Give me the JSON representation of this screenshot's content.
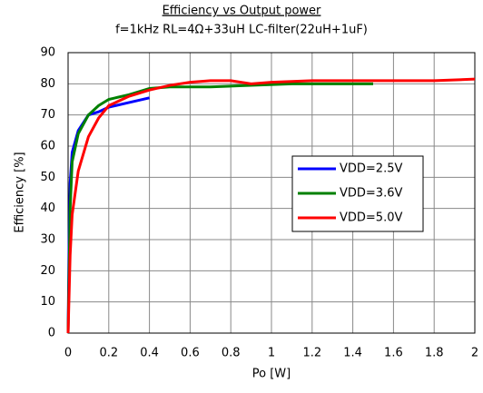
{
  "chart_data": {
    "type": "line",
    "title": "Efficiency vs Output power",
    "subtitle": "f=1kHz RL=4Ω+33uH  LC-filter(22uH+1uF)",
    "x_label": "Po [W]",
    "y_label": "Efficiency [%]",
    "xlim": [
      0,
      2
    ],
    "ylim": [
      0,
      90
    ],
    "xticks": [
      0,
      0.2,
      0.4,
      0.6,
      0.8,
      1,
      1.2,
      1.4,
      1.6,
      1.8,
      2
    ],
    "yticks": [
      0,
      10,
      20,
      30,
      40,
      50,
      60,
      70,
      80,
      90
    ],
    "grid": true,
    "legend": "right",
    "series": [
      {
        "name": "VDD=2.5V",
        "color": "#0000ff",
        "x": [
          0,
          0.005,
          0.01,
          0.02,
          0.05,
          0.1,
          0.15,
          0.2,
          0.3,
          0.4
        ],
        "values": [
          0,
          30,
          48,
          58,
          65,
          70,
          71,
          72.5,
          74,
          75.5
        ]
      },
      {
        "name": "VDD=3.6V",
        "color": "#008000",
        "x": [
          0,
          0.01,
          0.02,
          0.05,
          0.1,
          0.15,
          0.2,
          0.3,
          0.4,
          0.5,
          0.7,
          0.9,
          1.1,
          1.3,
          1.5
        ],
        "values": [
          0,
          40,
          55,
          64,
          70,
          73,
          75,
          76.5,
          78.5,
          79,
          79,
          79.5,
          80,
          80,
          80
        ]
      },
      {
        "name": "VDD=5.0V",
        "color": "#ff0000",
        "x": [
          0,
          0.01,
          0.02,
          0.05,
          0.1,
          0.15,
          0.2,
          0.3,
          0.4,
          0.5,
          0.6,
          0.7,
          0.8,
          0.9,
          1.0,
          1.2,
          1.5,
          1.8,
          2.0
        ],
        "values": [
          0,
          25,
          38,
          52,
          63,
          69,
          73,
          76,
          78,
          79.5,
          80.5,
          81,
          81,
          80,
          80.5,
          81,
          81,
          81,
          81.5
        ]
      }
    ]
  }
}
